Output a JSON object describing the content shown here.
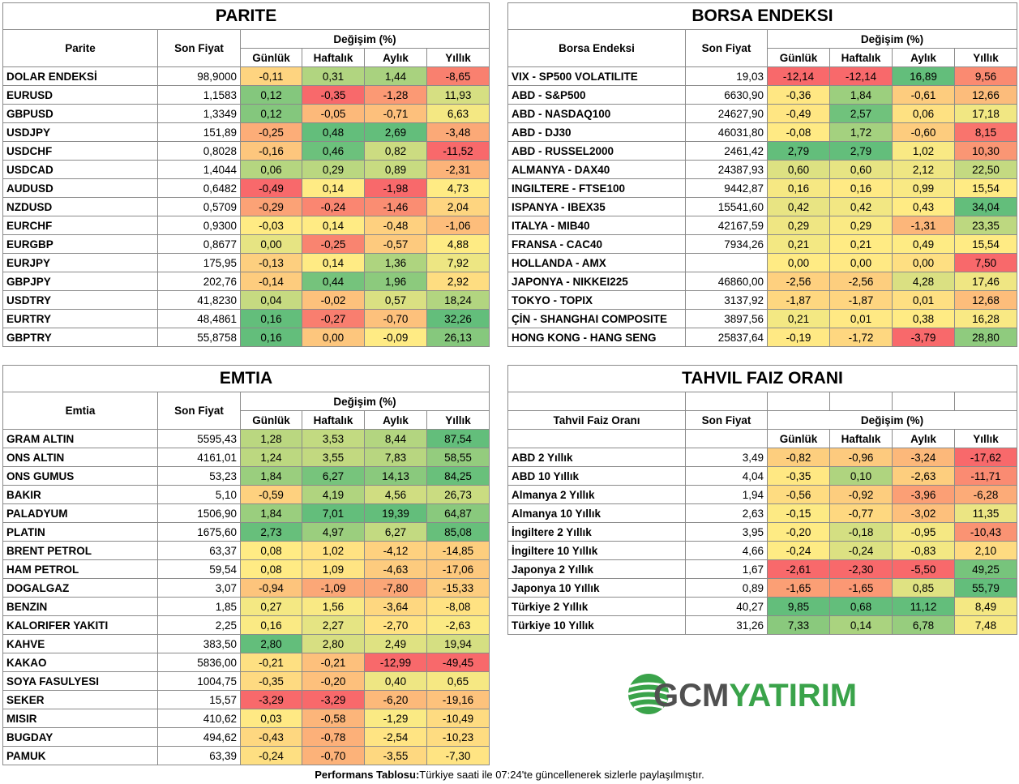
{
  "parite": {
    "title": "PARITE",
    "columns": [
      "Parite",
      "Son Fiyat"
    ],
    "change_header": "Değişim (%)",
    "periods": [
      "Günlük",
      "Haftalık",
      "Aylık",
      "Yıllık"
    ],
    "rows": [
      [
        "DOLAR ENDEKSİ",
        "98,9000",
        "-0,11",
        "0,31",
        "1,44",
        "-8,65"
      ],
      [
        "EURUSD",
        "1,1583",
        "0,12",
        "-0,35",
        "-1,28",
        "11,93"
      ],
      [
        "GBPUSD",
        "1,3349",
        "0,12",
        "-0,05",
        "-0,71",
        "6,63"
      ],
      [
        "USDJPY",
        "151,89",
        "-0,25",
        "0,48",
        "2,69",
        "-3,48"
      ],
      [
        "USDCHF",
        "0,8028",
        "-0,16",
        "0,46",
        "0,82",
        "-11,52"
      ],
      [
        "USDCAD",
        "1,4044",
        "0,06",
        "0,29",
        "0,89",
        "-2,31"
      ],
      [
        "AUDUSD",
        "0,6482",
        "-0,49",
        "0,14",
        "-1,98",
        "4,73"
      ],
      [
        "NZDUSD",
        "0,5709",
        "-0,29",
        "-0,24",
        "-1,46",
        "2,04"
      ],
      [
        "EURCHF",
        "0,9300",
        "-0,03",
        "0,14",
        "-0,48",
        "-1,06"
      ],
      [
        "EURGBP",
        "0,8677",
        "0,00",
        "-0,25",
        "-0,57",
        "4,88"
      ],
      [
        "EURJPY",
        "175,95",
        "-0,13",
        "0,14",
        "1,36",
        "7,92"
      ],
      [
        "GBPJPY",
        "202,76",
        "-0,14",
        "0,44",
        "1,96",
        "2,92"
      ],
      [
        "USDTRY",
        "41,8230",
        "0,04",
        "-0,02",
        "0,57",
        "18,24"
      ],
      [
        "EURTRY",
        "48,4861",
        "0,16",
        "-0,27",
        "-0,70",
        "32,26"
      ],
      [
        "GBPTRY",
        "55,8758",
        "0,16",
        "0,00",
        "-0,09",
        "26,13"
      ]
    ]
  },
  "borsa": {
    "title": "BORSA ENDEKSI",
    "columns": [
      "Borsa Endeksi",
      "Son Fiyat"
    ],
    "change_header": "Değişim (%)",
    "periods": [
      "Günlük",
      "Haftalık",
      "Aylık",
      "Yıllık"
    ],
    "rows": [
      [
        "VIX - SP500 VOLATILITE",
        "19,03",
        "-12,14",
        "-12,14",
        "16,89",
        "9,56"
      ],
      [
        "ABD - S&P500",
        "6630,90",
        "-0,36",
        "1,84",
        "-0,61",
        "12,66"
      ],
      [
        "ABD - NASDAQ100",
        "24627,90",
        "-0,49",
        "2,57",
        "0,06",
        "17,18"
      ],
      [
        "ABD - DJ30",
        "46031,80",
        "-0,08",
        "1,72",
        "-0,60",
        "8,15"
      ],
      [
        "ABD - RUSSEL2000",
        "2461,42",
        "2,79",
        "2,79",
        "1,02",
        "10,30"
      ],
      [
        "ALMANYA - DAX40",
        "24387,93",
        "0,60",
        "0,60",
        "2,12",
        "22,50"
      ],
      [
        "INGILTERE - FTSE100",
        "9442,87",
        "0,16",
        "0,16",
        "0,99",
        "15,54"
      ],
      [
        "ISPANYA - IBEX35",
        "15541,60",
        "0,42",
        "0,42",
        "0,43",
        "34,04"
      ],
      [
        "ITALYA - MIB40",
        "42167,59",
        "0,29",
        "0,29",
        "-1,31",
        "23,35"
      ],
      [
        "FRANSA - CAC40",
        "7934,26",
        "0,21",
        "0,21",
        "0,49",
        "15,54"
      ],
      [
        "HOLLANDA - AMX",
        null,
        "0,00",
        "0,00",
        "0,00",
        "7,50"
      ],
      [
        "JAPONYA - NIKKEI225",
        "46860,00",
        "-2,56",
        "-2,56",
        "4,28",
        "17,46"
      ],
      [
        "TOKYO - TOPIX",
        "3137,92",
        "-1,87",
        "-1,87",
        "0,01",
        "12,68"
      ],
      [
        "ÇİN - SHANGHAI COMPOSITE",
        "3897,56",
        "0,21",
        "0,01",
        "0,38",
        "16,28"
      ],
      [
        "HONG KONG - HANG SENG",
        "25837,64",
        "-0,19",
        "-1,72",
        "-3,79",
        "28,80"
      ]
    ]
  },
  "emtia": {
    "title": "EMTIA",
    "columns": [
      "Emtia",
      "Son Fiyat"
    ],
    "change_header": "Değişim (%)",
    "periods": [
      "Günlük",
      "Haftalık",
      "Aylık",
      "Yıllık"
    ],
    "rows": [
      [
        "GRAM ALTIN",
        "5595,43",
        "1,28",
        "3,53",
        "8,44",
        "87,54"
      ],
      [
        "ONS ALTIN",
        "4161,01",
        "1,24",
        "3,55",
        "7,83",
        "58,55"
      ],
      [
        "ONS GUMUS",
        "53,23",
        "1,84",
        "6,27",
        "14,13",
        "84,25"
      ],
      [
        "BAKIR",
        "5,10",
        "-0,59",
        "4,19",
        "4,56",
        "26,73"
      ],
      [
        "PALADYUM",
        "1506,90",
        "1,84",
        "7,01",
        "19,39",
        "64,87"
      ],
      [
        "PLATIN",
        "1675,60",
        "2,73",
        "4,97",
        "6,27",
        "85,08"
      ],
      [
        "BRENT PETROL",
        "63,37",
        "0,08",
        "1,02",
        "-4,12",
        "-14,85"
      ],
      [
        "HAM PETROL",
        "59,54",
        "0,08",
        "1,09",
        "-4,63",
        "-17,06"
      ],
      [
        "DOGALGAZ",
        "3,07",
        "-0,94",
        "-1,09",
        "-7,80",
        "-15,33"
      ],
      [
        "BENZIN",
        "1,85",
        "0,27",
        "1,56",
        "-3,64",
        "-8,08"
      ],
      [
        "KALORIFER YAKITI",
        "2,25",
        "0,16",
        "2,27",
        "-2,70",
        "-2,63"
      ],
      [
        "KAHVE",
        "383,50",
        "2,80",
        "2,80",
        "2,49",
        "19,94"
      ],
      [
        "KAKAO",
        "5836,00",
        "-0,21",
        "-0,21",
        "-12,99",
        "-49,45"
      ],
      [
        "SOYA FASULYESI",
        "1004,75",
        "-0,35",
        "-0,20",
        "0,40",
        "0,65"
      ],
      [
        "SEKER",
        "15,57",
        "-3,29",
        "-3,29",
        "-6,20",
        "-19,16"
      ],
      [
        "MISIR",
        "410,62",
        "0,03",
        "-0,58",
        "-1,29",
        "-10,49"
      ],
      [
        "BUGDAY",
        "494,62",
        "-0,43",
        "-0,78",
        "-2,54",
        "-10,23"
      ],
      [
        "PAMUK",
        "63,39",
        "-0,24",
        "-0,70",
        "-3,55",
        "-7,30"
      ]
    ]
  },
  "tahvil": {
    "title": "TAHVIL FAIZ ORANI",
    "columns": [
      "Tahvil Faiz Oranı",
      "Son Fiyat"
    ],
    "change_header": "Değişim (%)",
    "periods": [
      "Günlük",
      "Haftalık",
      "Aylık",
      "Yıllık"
    ],
    "rows": [
      [
        "ABD 2 Yıllık",
        "3,49",
        "-0,82",
        "-0,96",
        "-3,24",
        "-17,62"
      ],
      [
        "ABD 10 Yıllık",
        "4,04",
        "-0,35",
        "0,10",
        "-2,63",
        "-11,71"
      ],
      [
        "Almanya 2 Yıllık",
        "1,94",
        "-0,56",
        "-0,92",
        "-3,96",
        "-6,28"
      ],
      [
        "Almanya 10 Yıllık",
        "2,63",
        "-0,15",
        "-0,77",
        "-3,02",
        "11,35"
      ],
      [
        "İngiltere 2 Yıllık",
        "3,95",
        "-0,20",
        "-0,18",
        "-0,95",
        "-10,43"
      ],
      [
        "İngiltere 10 Yıllık",
        "4,66",
        "-0,24",
        "-0,24",
        "-0,83",
        "2,10"
      ],
      [
        "Japonya 2 Yıllık",
        "1,67",
        "-2,61",
        "-2,30",
        "-5,50",
        "49,25"
      ],
      [
        "Japonya 10 Yıllık",
        "0,89",
        "-1,65",
        "-1,65",
        "0,85",
        "55,79"
      ],
      [
        "Türkiye 2 Yıllık",
        "40,27",
        "9,85",
        "0,68",
        "11,12",
        "8,49"
      ],
      [
        "Türkiye 10 Yıllık",
        "31,26",
        "7,33",
        "0,14",
        "6,78",
        "7,48"
      ]
    ]
  },
  "logo": {
    "part1": "GCM",
    "part2": "YATIRIM"
  },
  "footer": {
    "label": "Performans Tablosu:",
    "text": " Türkiye saati ile 07:24'te güncellenerek sizlerle paylaşılmıştır."
  }
}
